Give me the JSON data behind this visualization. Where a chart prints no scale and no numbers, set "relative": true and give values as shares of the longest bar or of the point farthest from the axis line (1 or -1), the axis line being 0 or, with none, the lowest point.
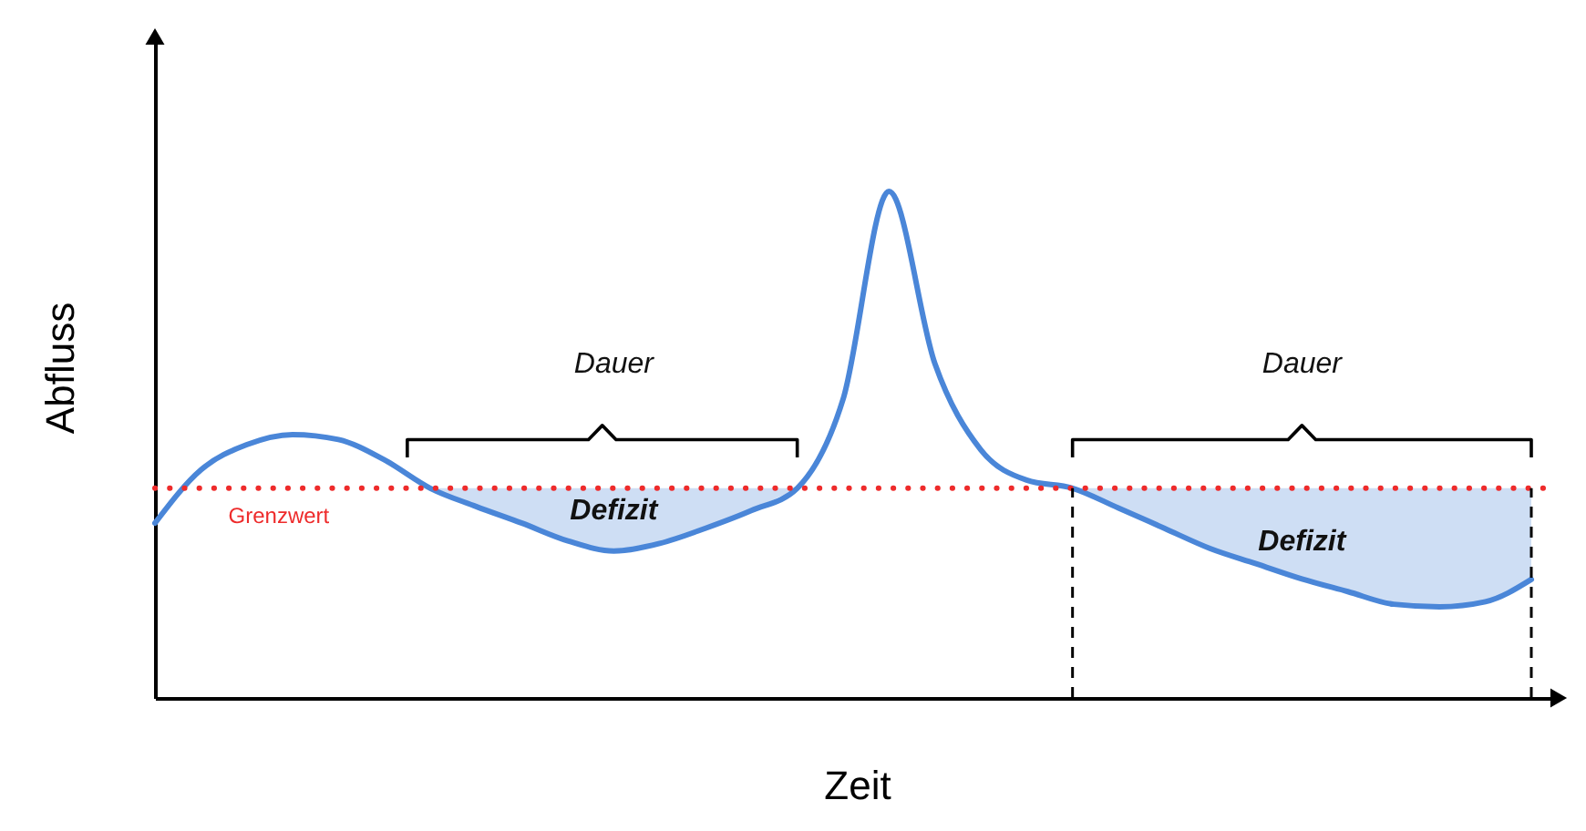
{
  "chart_data": {
    "type": "line",
    "relative": true,
    "xlabel": "Zeit",
    "ylabel": "Abfluss",
    "categories": [
      null,
      null,
      null,
      null,
      null,
      null,
      null,
      null,
      null,
      null,
      null,
      null,
      null,
      null,
      null,
      null,
      null,
      null,
      null,
      null,
      null,
      null,
      null,
      null,
      null,
      null,
      null,
      null,
      null,
      null,
      null
    ],
    "series": [
      {
        "color": "#4a86d8",
        "values": [
          0.345,
          0.45,
          0.5,
          0.52,
          0.51,
          0.47,
          0.414,
          0.378,
          0.345,
          0.31,
          0.29,
          0.305,
          0.335,
          0.37,
          0.414,
          0.59,
          1,
          0.66,
          0.49,
          0.43,
          0.414,
          0.375,
          0.335,
          0.295,
          0.265,
          0.235,
          0.21,
          0.185,
          0.18,
          0.19,
          0.234
        ],
        "lower": [
          null,
          null,
          null,
          null,
          null,
          null,
          0.414,
          0.378,
          0.345,
          0.31,
          0.29,
          0.305,
          0.335,
          0.37,
          0.414,
          null,
          null,
          null,
          null,
          null,
          0.414,
          0.375,
          0.335,
          0.295,
          0.265,
          0.235,
          0.21,
          0.185,
          0.18,
          0.19,
          0.234
        ],
        "upper": [
          null,
          null,
          null,
          null,
          null,
          null,
          0.414,
          0.414,
          0.414,
          0.414,
          0.414,
          0.414,
          0.414,
          0.414,
          0.414,
          null,
          null,
          null,
          null,
          null,
          0.414,
          0.414,
          0.414,
          0.414,
          0.414,
          0.414,
          0.414,
          0.414,
          0.414,
          0.414,
          0.414
        ]
      }
    ],
    "ref_lines": [
      {
        "axis": "y",
        "value": 0.414,
        "label": "Grenzwert",
        "color": "#ee2b2b",
        "line_style": "dotted"
      }
    ],
    "annotations": [
      "Dauer",
      "Dauer",
      "Defizit",
      "Defizit"
    ]
  }
}
